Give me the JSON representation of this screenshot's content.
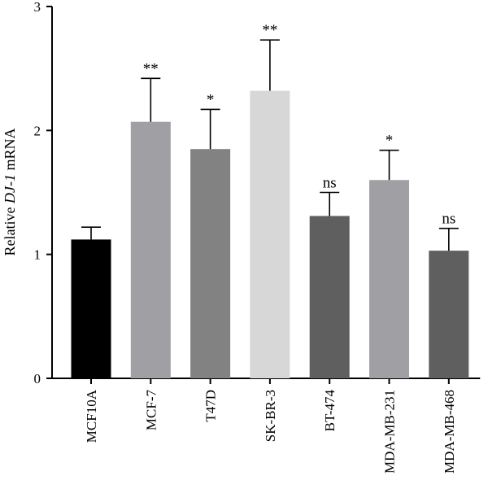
{
  "chart_data": {
    "type": "bar",
    "ylabel_parts": [
      "Relative ",
      "DJ-1",
      " mRNA"
    ],
    "ylim": [
      0,
      3
    ],
    "yticks": [
      0,
      1,
      2,
      3
    ],
    "categories": [
      "MCF10A",
      "MCF-7",
      "T47D",
      "SK-BR-3",
      "BT-474",
      "MDA-MB-231",
      "MDA-MB-468"
    ],
    "values": [
      1.12,
      2.07,
      1.85,
      2.32,
      1.31,
      1.6,
      1.03
    ],
    "errors": [
      0.1,
      0.35,
      0.32,
      0.41,
      0.19,
      0.24,
      0.18
    ],
    "significance": [
      "",
      "**",
      "*",
      "**",
      "ns",
      "*",
      "ns"
    ],
    "colors": [
      "#000000",
      "#a0a0a4",
      "#828282",
      "#d7d7d7",
      "#5f5f5f",
      "#a0a0a4",
      "#5f5f5f"
    ]
  }
}
